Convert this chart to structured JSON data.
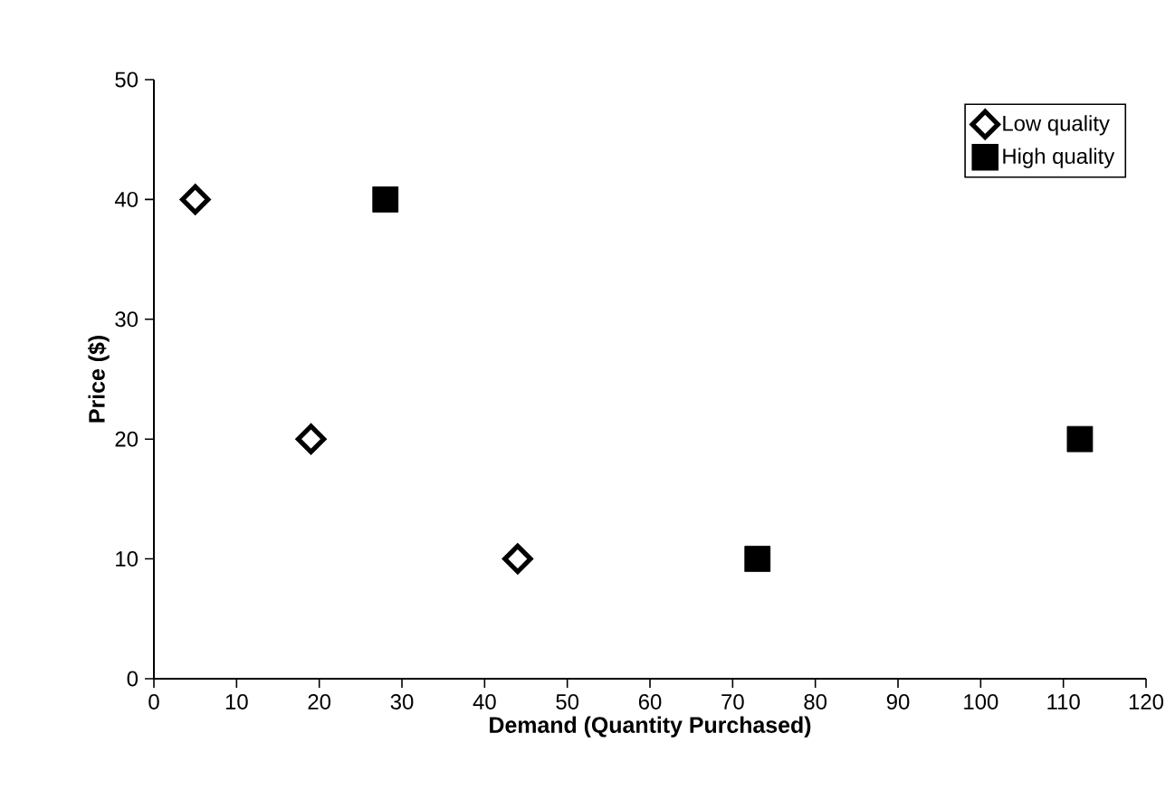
{
  "chart_data": {
    "type": "scatter",
    "xlabel": "Demand (Quantity Purchased)",
    "ylabel": "Price ($)",
    "xlim": [
      0,
      120
    ],
    "xticks": [
      0,
      10,
      20,
      30,
      40,
      50,
      60,
      70,
      80,
      90,
      100,
      110,
      120
    ],
    "ylim": [
      0,
      50
    ],
    "yticks": [
      0,
      10,
      20,
      30,
      40,
      50
    ],
    "legend": "top right",
    "grid": false,
    "series": [
      {
        "name": "Low quality",
        "color": "#000000",
        "marker": "diamond",
        "x": [
          5,
          19,
          44
        ],
        "values": [
          40,
          20,
          10
        ]
      },
      {
        "name": "High quality",
        "color": "#000000",
        "marker": "square",
        "x": [
          28,
          112,
          73
        ],
        "values": [
          40,
          20,
          10
        ]
      }
    ]
  }
}
